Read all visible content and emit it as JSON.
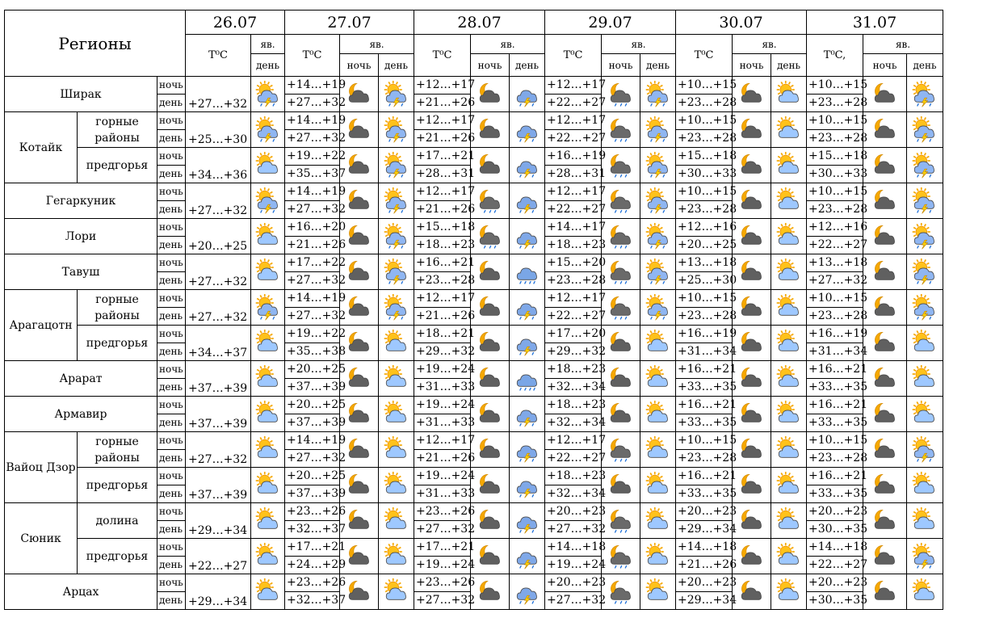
{
  "header": {
    "regions_label": "Регионы",
    "dates": [
      "26.07",
      "27.07",
      "28.07",
      "29.07",
      "30.07",
      "31.07"
    ],
    "temp_label": "T⁰C",
    "temp_label_last": "T⁰C,",
    "yav_label": "яв.",
    "night_label": "ночь",
    "day_label": "день"
  },
  "groups": [
    {
      "name": "Ширак",
      "subs": [
        {
          "sub": null,
          "d1": {
            "night": "",
            "day": "+27…+32",
            "icon": "storm-sun"
          },
          "days": [
            {
              "night": "+14…+19",
              "day": "+27…+32",
              "icons": [
                "moon-cloud",
                "storm-sun"
              ]
            },
            {
              "night": "+12…+17",
              "day": "+21…+26",
              "icons": [
                "moon-cloud",
                "storm-cloud"
              ]
            },
            {
              "night": "+12…+17",
              "day": "+22…+27",
              "icons": [
                "moon-rain",
                "storm-sun"
              ]
            },
            {
              "night": "+10…+15",
              "day": "+23…+28",
              "icons": [
                "moon-cloud",
                "sun-cloud"
              ]
            },
            {
              "night": "+10…+15",
              "day": "+23…+28",
              "icons": [
                "moon-cloud",
                "storm-sun"
              ]
            }
          ]
        }
      ]
    },
    {
      "name": "Котайк",
      "subs": [
        {
          "sub": "горные районы",
          "d1": {
            "night": "",
            "day": "+25…+30",
            "icon": "storm-sun"
          },
          "days": [
            {
              "night": "+14…+19",
              "day": "+27…+32",
              "icons": [
                "moon-cloud",
                "storm-sun"
              ]
            },
            {
              "night": "+12…+17",
              "day": "+21…+26",
              "icons": [
                "moon-cloud",
                "storm-cloud"
              ]
            },
            {
              "night": "+12…+17",
              "day": "+22…+27",
              "icons": [
                "moon-rain",
                "storm-sun"
              ]
            },
            {
              "night": "+10…+15",
              "day": "+23…+28",
              "icons": [
                "moon-cloud",
                "sun-cloud"
              ]
            },
            {
              "night": "+10…+15",
              "day": "+23…+28",
              "icons": [
                "moon-cloud",
                "storm-sun"
              ]
            }
          ]
        },
        {
          "sub": "предгорья",
          "d1": {
            "night": "",
            "day": "+34…+36",
            "icon": "sun-cloud"
          },
          "days": [
            {
              "night": "+19…+22",
              "day": "+35…+37",
              "icons": [
                "moon-cloud",
                "storm-sun"
              ]
            },
            {
              "night": "+17…+21",
              "day": "+28…+31",
              "icons": [
                "moon-cloud",
                "storm-cloud"
              ]
            },
            {
              "night": "+16…+19",
              "day": "+28…+31",
              "icons": [
                "moon-rain",
                "storm-sun"
              ]
            },
            {
              "night": "+15…+18",
              "day": "+30…+33",
              "icons": [
                "moon-cloud",
                "sun-cloud"
              ]
            },
            {
              "night": "+15…+18",
              "day": "+30…+33",
              "icons": [
                "moon-cloud",
                "storm-sun"
              ]
            }
          ]
        }
      ]
    },
    {
      "name": "Гегаркуник",
      "subs": [
        {
          "sub": null,
          "d1": {
            "night": "",
            "day": "+27…+32",
            "icon": "storm-sun"
          },
          "days": [
            {
              "night": "+14…+19",
              "day": "+27…+32",
              "icons": [
                "moon-cloud",
                "storm-sun"
              ]
            },
            {
              "night": "+12…+17",
              "day": "+21…+26",
              "icons": [
                "moon-rain",
                "storm-cloud"
              ]
            },
            {
              "night": "+12…+17",
              "day": "+22…+27",
              "icons": [
                "moon-rain",
                "storm-sun"
              ]
            },
            {
              "night": "+10…+15",
              "day": "+23…+28",
              "icons": [
                "moon-cloud",
                "sun-cloud"
              ]
            },
            {
              "night": "+10…+15",
              "day": "+23…+28",
              "icons": [
                "moon-cloud",
                "storm-sun"
              ]
            }
          ]
        }
      ]
    },
    {
      "name": "Лори",
      "subs": [
        {
          "sub": null,
          "d1": {
            "night": "",
            "day": "+20…+25",
            "icon": "sun-cloud"
          },
          "days": [
            {
              "night": "+16…+20",
              "day": "+21…+26",
              "icons": [
                "moon-cloud",
                "storm-sun"
              ]
            },
            {
              "night": "+15…+18",
              "day": "+18…+23",
              "icons": [
                "moon-rain",
                "storm-cloud"
              ]
            },
            {
              "night": "+14…+17",
              "day": "+18…+23",
              "icons": [
                "moon-rain",
                "storm-sun"
              ]
            },
            {
              "night": "+12…+16",
              "day": "+20…+25",
              "icons": [
                "moon-cloud",
                "sun-cloud"
              ]
            },
            {
              "night": "+12…+16",
              "day": "+22…+27",
              "icons": [
                "moon-cloud",
                "storm-sun"
              ]
            }
          ]
        }
      ]
    },
    {
      "name": "Тавуш",
      "subs": [
        {
          "sub": null,
          "d1": {
            "night": "",
            "day": "+27…+32",
            "icon": "sun-cloud"
          },
          "days": [
            {
              "night": "+17…+22",
              "day": "+27…+32",
              "icons": [
                "moon-cloud",
                "storm-sun"
              ]
            },
            {
              "night": "+16…+21",
              "day": "+23…+28",
              "icons": [
                "moon-cloud",
                "rain-cloud"
              ]
            },
            {
              "night": "+15…+20",
              "day": "+23…+28",
              "icons": [
                "moon-rain",
                "storm-sun"
              ]
            },
            {
              "night": "+13…+18",
              "day": "+25…+30",
              "icons": [
                "moon-cloud",
                "sun-cloud"
              ]
            },
            {
              "night": "+13…+18",
              "day": "+27…+32",
              "icons": [
                "moon-cloud",
                "storm-sun"
              ]
            }
          ]
        }
      ]
    },
    {
      "name": "Арагацотн",
      "subs": [
        {
          "sub": "горные районы",
          "d1": {
            "night": "",
            "day": "+27…+32",
            "icon": "storm-sun"
          },
          "days": [
            {
              "night": "+14…+19",
              "day": "+27…+32",
              "icons": [
                "moon-cloud",
                "storm-sun"
              ]
            },
            {
              "night": "+12…+17",
              "day": "+21…+26",
              "icons": [
                "moon-cloud",
                "storm-cloud"
              ]
            },
            {
              "night": "+12…+17",
              "day": "+22…+27",
              "icons": [
                "moon-rain",
                "storm-sun"
              ]
            },
            {
              "night": "+10…+15",
              "day": "+23…+28",
              "icons": [
                "moon-cloud",
                "sun-cloud"
              ]
            },
            {
              "night": "+10…+15",
              "day": "+23…+28",
              "icons": [
                "moon-cloud",
                "storm-sun"
              ]
            }
          ]
        },
        {
          "sub": "предгорья",
          "d1": {
            "night": "",
            "day": "+34…+37",
            "icon": "sun-cloud"
          },
          "days": [
            {
              "night": "+19…+22",
              "day": "+35…+38",
              "icons": [
                "moon-cloud",
                "sun-cloud"
              ]
            },
            {
              "night": "+18…+21",
              "day": "+29…+32",
              "icons": [
                "moon-cloud",
                "storm-cloud"
              ]
            },
            {
              "night": "+17…+20",
              "day": "+29…+32",
              "icons": [
                "moon-cloud",
                "sun-cloud"
              ]
            },
            {
              "night": "+16…+19",
              "day": "+31…+34",
              "icons": [
                "moon-cloud",
                "sun-cloud"
              ]
            },
            {
              "night": "+16…+19",
              "day": "+31…+34",
              "icons": [
                "moon-cloud",
                "sun-cloud"
              ]
            }
          ]
        }
      ]
    },
    {
      "name": "Арарат",
      "subs": [
        {
          "sub": null,
          "d1": {
            "night": "",
            "day": "+37…+39",
            "icon": "sun-cloud"
          },
          "days": [
            {
              "night": "+20…+25",
              "day": "+37…+39",
              "icons": [
                "moon-cloud",
                "sun-cloud"
              ]
            },
            {
              "night": "+19…+24",
              "day": "+31…+33",
              "icons": [
                "moon-cloud",
                "rain-cloud"
              ]
            },
            {
              "night": "+18…+23",
              "day": "+32…+34",
              "icons": [
                "moon-cloud",
                "sun-cloud"
              ]
            },
            {
              "night": "+16…+21",
              "day": "+33…+35",
              "icons": [
                "moon-cloud",
                "sun-cloud"
              ]
            },
            {
              "night": "+16…+21",
              "day": "+33…+35",
              "icons": [
                "moon-cloud",
                "sun-cloud"
              ]
            }
          ]
        }
      ]
    },
    {
      "name": "Армавир",
      "subs": [
        {
          "sub": null,
          "d1": {
            "night": "",
            "day": "+37…+39",
            "icon": "sun-cloud"
          },
          "days": [
            {
              "night": "+20…+25",
              "day": "+37…+39",
              "icons": [
                "moon-cloud",
                "sun-cloud"
              ]
            },
            {
              "night": "+19…+24",
              "day": "+31…+33",
              "icons": [
                "moon-cloud",
                "storm-cloud"
              ]
            },
            {
              "night": "+18…+23",
              "day": "+32…+34",
              "icons": [
                "moon-cloud",
                "sun-cloud"
              ]
            },
            {
              "night": "+16…+21",
              "day": "+33…+35",
              "icons": [
                "moon-cloud",
                "sun-cloud"
              ]
            },
            {
              "night": "+16…+21",
              "day": "+33…+35",
              "icons": [
                "moon-cloud",
                "sun-cloud"
              ]
            }
          ]
        }
      ]
    },
    {
      "name": "Вайоц Дзор",
      "subs": [
        {
          "sub": "горные районы",
          "d1": {
            "night": "",
            "day": "+27…+32",
            "icon": "sun-cloud"
          },
          "days": [
            {
              "night": "+14…+19",
              "day": "+27…+32",
              "icons": [
                "moon-cloud",
                "sun-cloud"
              ]
            },
            {
              "night": "+12…+17",
              "day": "+21…+26",
              "icons": [
                "moon-cloud",
                "storm-cloud"
              ]
            },
            {
              "night": "+12…+17",
              "day": "+22…+27",
              "icons": [
                "moon-rain",
                "sun-cloud"
              ]
            },
            {
              "night": "+10…+15",
              "day": "+23…+28",
              "icons": [
                "moon-cloud",
                "sun-cloud"
              ]
            },
            {
              "night": "+10…+15",
              "day": "+23…+28",
              "icons": [
                "moon-cloud",
                "storm-sun"
              ]
            }
          ]
        },
        {
          "sub": "предгорья",
          "d1": {
            "night": "",
            "day": "+37…+39",
            "icon": "sun-cloud"
          },
          "days": [
            {
              "night": "+20…+25",
              "day": "+37…+39",
              "icons": [
                "moon-cloud",
                "sun-cloud"
              ]
            },
            {
              "night": "+19…+24",
              "day": "+31…+33",
              "icons": [
                "moon-cloud",
                "storm-cloud"
              ]
            },
            {
              "night": "+18…+23",
              "day": "+32…+34",
              "icons": [
                "moon-cloud",
                "sun-cloud"
              ]
            },
            {
              "night": "+16…+21",
              "day": "+33…+35",
              "icons": [
                "moon-cloud",
                "sun-cloud"
              ]
            },
            {
              "night": "+16…+21",
              "day": "+33…+35",
              "icons": [
                "moon-cloud",
                "sun-cloud"
              ]
            }
          ]
        }
      ]
    },
    {
      "name": "Сюник",
      "subs": [
        {
          "sub": "долина",
          "d1": {
            "night": "",
            "day": "+29…+34",
            "icon": "sun-cloud"
          },
          "days": [
            {
              "night": "+23…+26",
              "day": "+32…+37",
              "icons": [
                "moon-cloud",
                "sun-cloud"
              ]
            },
            {
              "night": "+23…+26",
              "day": "+27…+32",
              "icons": [
                "moon-cloud",
                "storm-cloud"
              ]
            },
            {
              "night": "+20…+23",
              "day": "+27…+32",
              "icons": [
                "moon-rain",
                "sun-cloud"
              ]
            },
            {
              "night": "+20…+23",
              "day": "+29…+34",
              "icons": [
                "moon-cloud",
                "sun-cloud"
              ]
            },
            {
              "night": "+20…+23",
              "day": "+30…+35",
              "icons": [
                "moon-cloud",
                "sun-cloud"
              ]
            }
          ]
        },
        {
          "sub": "предгорья",
          "d1": {
            "night": "",
            "day": "+22…+27",
            "icon": "sun-cloud"
          },
          "days": [
            {
              "night": "+17…+21",
              "day": "+24…+29",
              "icons": [
                "moon-cloud",
                "sun-cloud"
              ]
            },
            {
              "night": "+17…+21",
              "day": "+19…+24",
              "icons": [
                "moon-cloud",
                "storm-cloud"
              ]
            },
            {
              "night": "+14…+18",
              "day": "+19…+24",
              "icons": [
                "moon-rain",
                "sun-cloud"
              ]
            },
            {
              "night": "+14…+18",
              "day": "+21…+26",
              "icons": [
                "moon-cloud",
                "sun-cloud"
              ]
            },
            {
              "night": "+14…+18",
              "day": "+22…+27",
              "icons": [
                "moon-cloud",
                "storm-sun"
              ]
            }
          ]
        }
      ]
    },
    {
      "name": "Арцах",
      "subs": [
        {
          "sub": null,
          "d1": {
            "night": "",
            "day": "+29…+34",
            "icon": "sun-cloud"
          },
          "days": [
            {
              "night": "+23…+26",
              "day": "+32…+37",
              "icons": [
                "moon-cloud",
                "sun-cloud"
              ]
            },
            {
              "night": "+23…+26",
              "day": "+27…+32",
              "icons": [
                "moon-cloud",
                "storm-cloud"
              ]
            },
            {
              "night": "+20…+23",
              "day": "+27…+32",
              "icons": [
                "moon-rain",
                "sun-cloud"
              ]
            },
            {
              "night": "+20…+23",
              "day": "+29…+34",
              "icons": [
                "moon-cloud",
                "sun-cloud"
              ]
            },
            {
              "night": "+20…+23",
              "day": "+30…+35",
              "icons": [
                "moon-cloud",
                "sun-cloud"
              ]
            }
          ]
        }
      ]
    }
  ]
}
